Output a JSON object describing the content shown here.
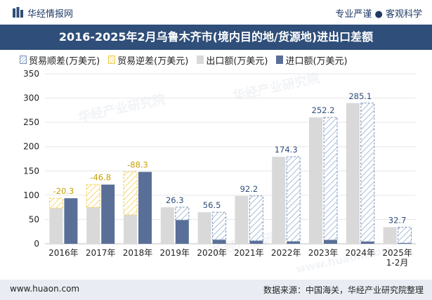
{
  "header": {
    "site_name": "华经情报网",
    "slogan": "专业严谨 ● 客观科学",
    "title": "2016-2025年2月乌鲁木齐市(境内目的地/货源地)进出口差额"
  },
  "legend": {
    "surplus": "贸易顺差(万美元)",
    "deficit": "贸易逆差(万美元)",
    "export": "出口额(万美元)",
    "import": "进口额(万美元)"
  },
  "watermark": {
    "text1": "华经产业研究院",
    "text2": "www.huaon.com"
  },
  "footer": {
    "url": "www.huaon.com",
    "source": "数据来源：中国海关，华经产业研究院整理"
  },
  "colors": {
    "title_bg": "#2f4e79",
    "export": "#d9d9d9",
    "import": "#5a6f98",
    "surplus_stroke": "#7d95b8",
    "deficit_stroke": "#f2cc4a",
    "footer_bg": "#e9edf3"
  },
  "chart_data": {
    "type": "bar",
    "categories": [
      "2016年",
      "2017年",
      "2018年",
      "2019年",
      "2020年",
      "2021年",
      "2022年",
      "2023年",
      "2024年",
      "2025年\n1-2月"
    ],
    "series": [
      {
        "name": "出口额(万美元)",
        "values": [
          73.5,
          75.1,
          59.7,
          75.3,
          64.9,
          98.5,
          179.1,
          260.1,
          289.6,
          34.2
        ]
      },
      {
        "name": "进口额(万美元)",
        "values": [
          93.8,
          121.9,
          148.0,
          49.0,
          8.4,
          6.3,
          4.8,
          7.9,
          4.5,
          1.5
        ]
      }
    ],
    "balance": [
      -20.3,
      -46.8,
      -88.3,
      26.3,
      56.5,
      92.2,
      174.3,
      252.2,
      285.1,
      32.7
    ],
    "balance_labels": [
      "-20.3",
      "-46.8",
      "-88.3",
      "26.3",
      "56.5",
      "92.2",
      "174.3",
      "252.2",
      "285.1",
      "32.7"
    ],
    "y_ticks": [
      "0",
      "50",
      "100",
      "150",
      "200",
      "250",
      "300",
      "350"
    ],
    "ylim": [
      0,
      350
    ],
    "grid": true,
    "legend_position": "top-left"
  }
}
